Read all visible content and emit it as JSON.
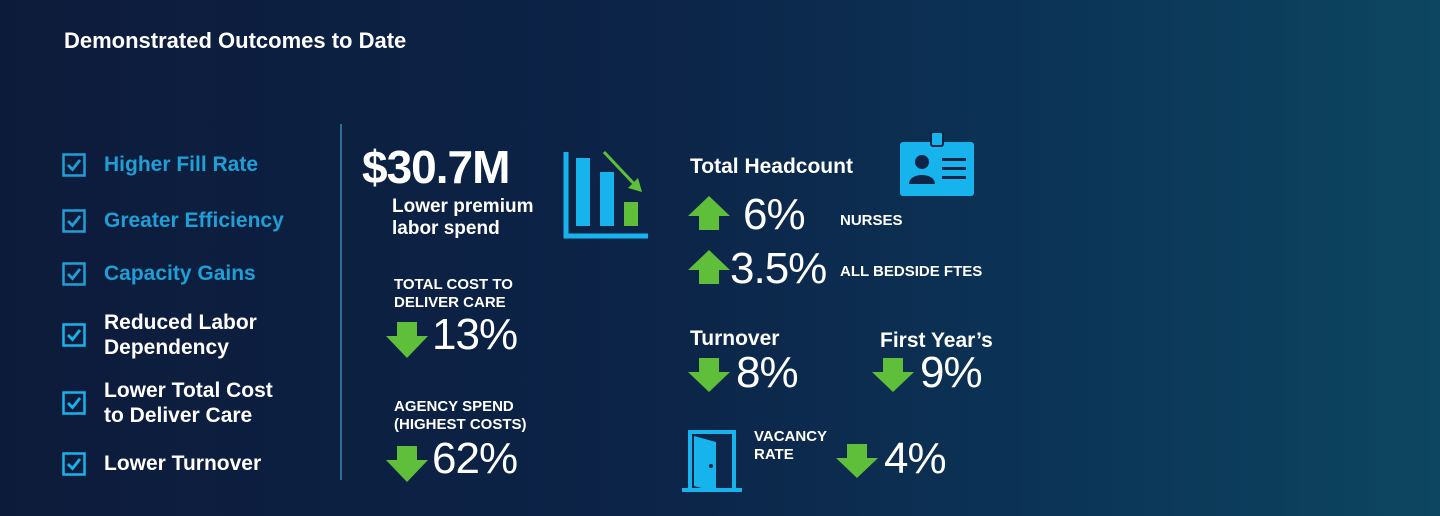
{
  "title": "Demonstrated Outcomes to Date",
  "checklist": [
    {
      "label": "Higher Fill Rate"
    },
    {
      "label": "Greater Efficiency"
    },
    {
      "label": "Capacity Gains"
    },
    {
      "label_line1": "Reduced Labor",
      "label_line2": "Dependency"
    },
    {
      "label_line1": "Lower Total Cost",
      "label_line2": "to Deliver Care"
    },
    {
      "label": "Lower Turnover"
    }
  ],
  "premium": {
    "value": "$30.7M",
    "line1": "Lower premium",
    "line2": "labor spend"
  },
  "total_cost": {
    "line1": "TOTAL COST TO",
    "line2": "DELIVER CARE",
    "value": "13%"
  },
  "agency": {
    "line1": "AGENCY SPEND",
    "line2": "(HIGHEST COSTS)",
    "value": "62%"
  },
  "headcount": {
    "title": "Total Headcount",
    "nurses": {
      "value": "6%",
      "label": "NURSES"
    },
    "bedside": {
      "value": "3.5%",
      "label": "ALL BEDSIDE FTES"
    }
  },
  "turnover": {
    "title": "Turnover",
    "value": "8%"
  },
  "first_year": {
    "title": "First Year’s",
    "value": "9%"
  },
  "vacancy": {
    "line1": "VACANCY",
    "line2": "RATE",
    "value": "4%"
  },
  "colors": {
    "accent_blue": "#1f9fd6",
    "icon_blue": "#17b3ec",
    "up_green": "#5fbf3a",
    "down_green": "#5fbf3a"
  }
}
